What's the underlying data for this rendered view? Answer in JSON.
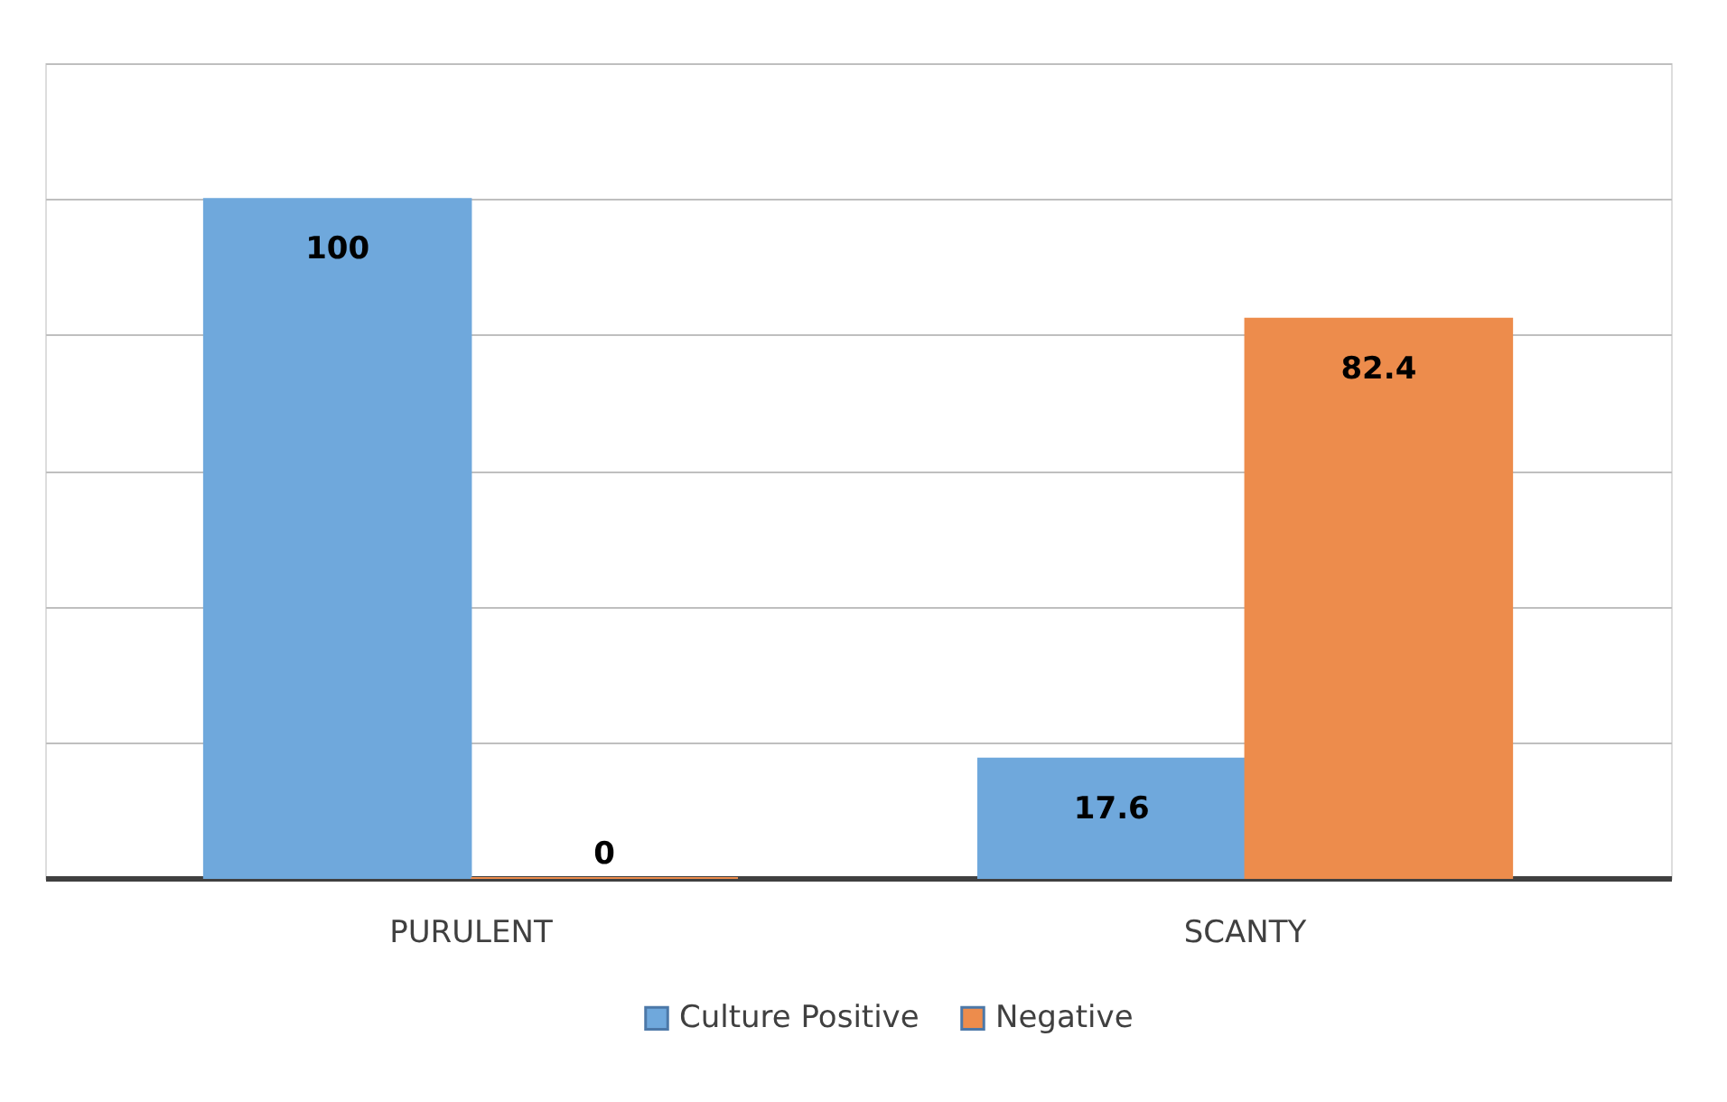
{
  "chart_data": {
    "type": "bar",
    "categories": [
      "PURULENT",
      "SCANTY"
    ],
    "series": [
      {
        "name": "Culture Positive",
        "color": "#6fa8dc",
        "values": [
          100,
          17.6
        ]
      },
      {
        "name": "Negative",
        "color": "#ed8c4c",
        "values": [
          0,
          82.4
        ]
      }
    ],
    "ylim": [
      0,
      120
    ],
    "yticks": [
      {
        "value": 0,
        "label": null
      },
      {
        "value": 20,
        "label": null
      },
      {
        "value": 40,
        "label": null
      },
      {
        "value": 60,
        "label": null
      },
      {
        "value": 80,
        "label": null
      },
      {
        "value": 100,
        "label": null
      },
      {
        "value": 120,
        "label": null
      }
    ],
    "tick_labels": "x",
    "grid": "y",
    "legend": "bottom",
    "data_labels": true
  }
}
